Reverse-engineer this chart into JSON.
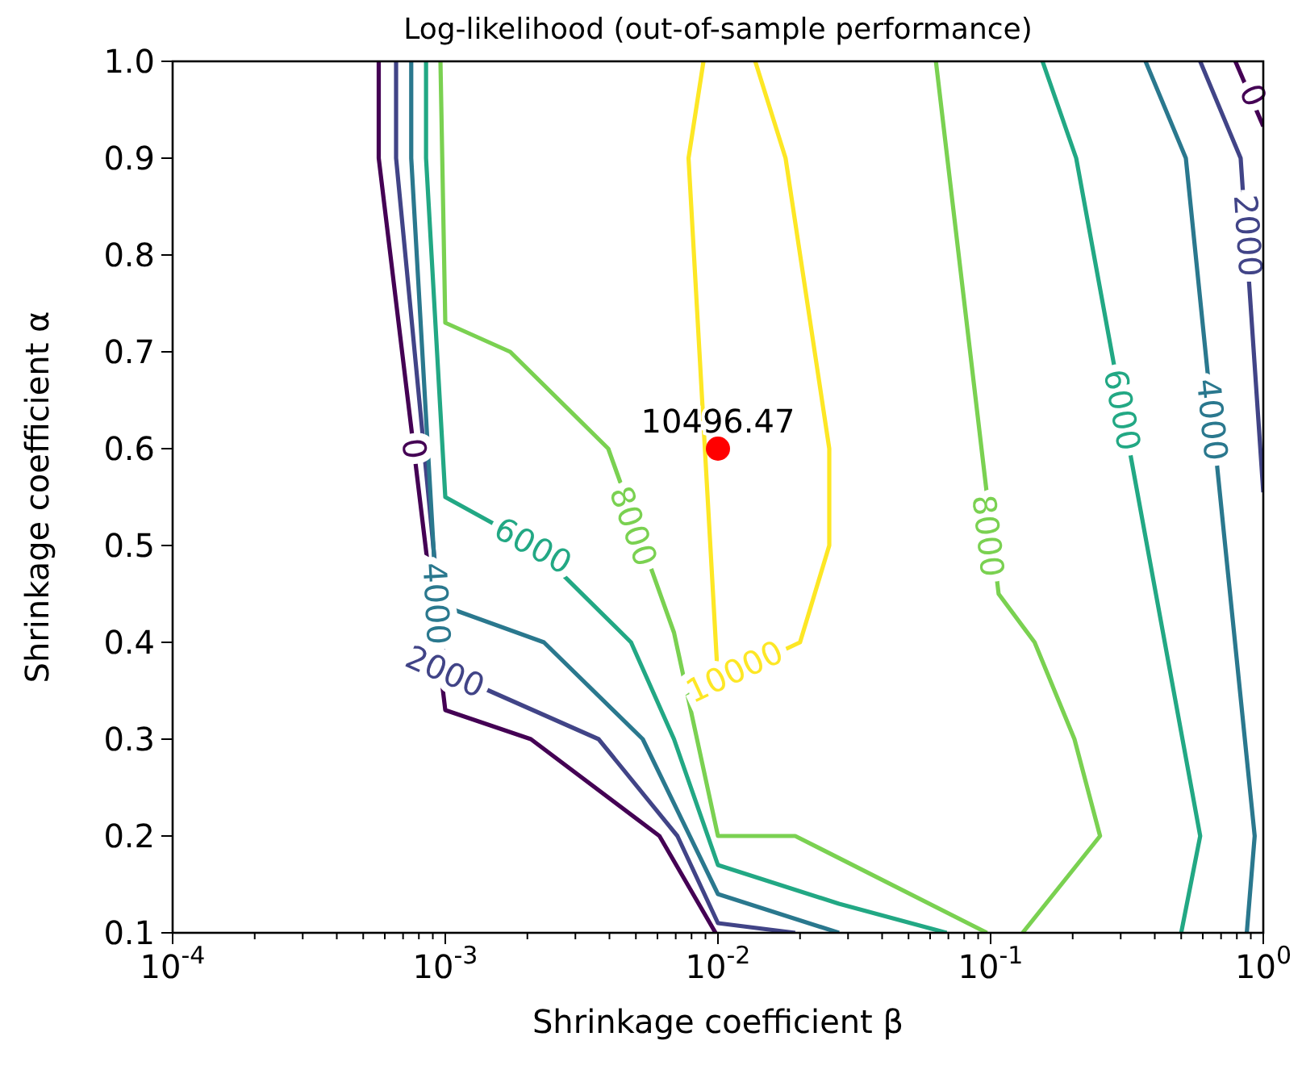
{
  "chart_data": {
    "type": "line",
    "title": "Log-likelihood (out-of-sample performance)",
    "xlabel": "Shrinkage coefficient β",
    "ylabel": "Shrinkage coefficient α",
    "log": "x",
    "xlim": [
      0.0001,
      1
    ],
    "xticks": [
      {
        "value": 0.0001,
        "label": "10$^{-4}$"
      },
      {
        "value": 0.001,
        "label": "10$^{-3}$"
      },
      {
        "value": 0.01,
        "label": "10$^{-2}$"
      },
      {
        "value": 0.1,
        "label": "10$^{-1}$"
      },
      {
        "value": 1,
        "label": "10$^{0}$"
      }
    ],
    "ylim": [
      0.1,
      1
    ],
    "yticks": [
      0.1,
      0.2,
      0.3,
      0.4,
      0.5,
      0.6,
      0.7,
      0.8,
      0.9,
      {
        "value": 1,
        "label": "1.0"
      }
    ],
    "series": [
      {
        "color": "#440154",
        "x": [
          0.00057,
          0.00057,
          0.001,
          0.00206,
          0.0061,
          0.0098
        ],
        "values": [
          1.0,
          0.9,
          0.33,
          0.3,
          0.2,
          0.1
        ]
      },
      {
        "color": "#440154",
        "x": [
          0.79,
          1.0
        ],
        "values": [
          1.0,
          0.933
        ]
      },
      {
        "color": "#414487",
        "x": [
          0.00066,
          0.00066,
          0.001,
          0.00365,
          0.0071,
          0.01,
          0.0192
        ],
        "values": [
          1.0,
          0.9,
          0.37,
          0.3,
          0.2,
          0.11,
          0.1
        ]
      },
      {
        "color": "#414487",
        "x": [
          0.587,
          0.826,
          1.0
        ],
        "values": [
          1.0,
          0.9,
          0.555
        ]
      },
      {
        "color": "#2a788e",
        "x": [
          0.00075,
          0.00075,
          0.00093,
          0.0023,
          0.0053,
          0.01,
          0.0278
        ],
        "values": [
          1.0,
          0.9,
          0.44,
          0.4,
          0.3,
          0.14,
          0.1
        ]
      },
      {
        "color": "#2a788e",
        "x": [
          0.37,
          0.52,
          0.93,
          0.87
        ],
        "values": [
          1.0,
          0.9,
          0.2,
          0.1
        ]
      },
      {
        "color": "#22a884",
        "x": [
          0.00085,
          0.00085,
          0.001,
          0.0021,
          0.0048,
          0.0069,
          0.01,
          0.0278,
          0.069
        ],
        "values": [
          1.0,
          0.9,
          0.55,
          0.5,
          0.4,
          0.3,
          0.17,
          0.13,
          0.1
        ]
      },
      {
        "color": "#22a884",
        "x": [
          0.155,
          0.206,
          0.587,
          0.5
        ],
        "values": [
          1.0,
          0.9,
          0.2,
          0.1
        ]
      },
      {
        "color": "#7ad151",
        "x": [
          0.00096,
          0.001,
          0.00173,
          0.00396,
          0.0069,
          0.01,
          0.0192,
          0.097
        ],
        "values": [
          1.0,
          0.73,
          0.7,
          0.6,
          0.41,
          0.2,
          0.2,
          0.1
        ]
      },
      {
        "color": "#7ad151",
        "x": [
          0.131,
          0.252,
          0.203,
          0.145,
          0.107,
          0.063
        ],
        "values": [
          0.1,
          0.2,
          0.3,
          0.4,
          0.45,
          1.0
        ]
      },
      {
        "color": "#fde725",
        "x": [
          0.00885,
          0.0078,
          0.01,
          0.02,
          0.0256,
          0.0256,
          0.0177,
          0.0137
        ],
        "values": [
          1.0,
          0.9,
          0.36,
          0.4,
          0.5,
          0.6,
          0.9,
          1.0
        ]
      },
      {
        "type": "scatter",
        "marker": "circle",
        "color": "#ff0000",
        "x": [
          0.01
        ],
        "values": [
          0.6
        ]
      }
    ],
    "annotations": [
      {
        "text": "10496.47",
        "x": 0.01,
        "y": 0.6
      },
      {
        "text": "0",
        "x": 0.00077,
        "y": 0.6
      },
      {
        "text": "2000",
        "x": 0.001,
        "y": 0.37
      },
      {
        "text": "4000",
        "x": 0.00093,
        "y": 0.44
      },
      {
        "text": "6000",
        "x": 0.0021,
        "y": 0.5
      },
      {
        "text": "8000",
        "x": 0.0049,
        "y": 0.52
      },
      {
        "text": "10000",
        "x": 0.0115,
        "y": 0.37
      },
      {
        "text": "8000",
        "x": 0.098,
        "y": 0.51
      },
      {
        "text": "6000",
        "x": 0.304,
        "y": 0.64
      },
      {
        "text": "4000",
        "x": 0.65,
        "y": 0.63
      },
      {
        "text": "2000",
        "x": 0.88,
        "y": 0.82
      },
      {
        "text": "0",
        "x": 0.92,
        "y": 0.965
      }
    ]
  }
}
